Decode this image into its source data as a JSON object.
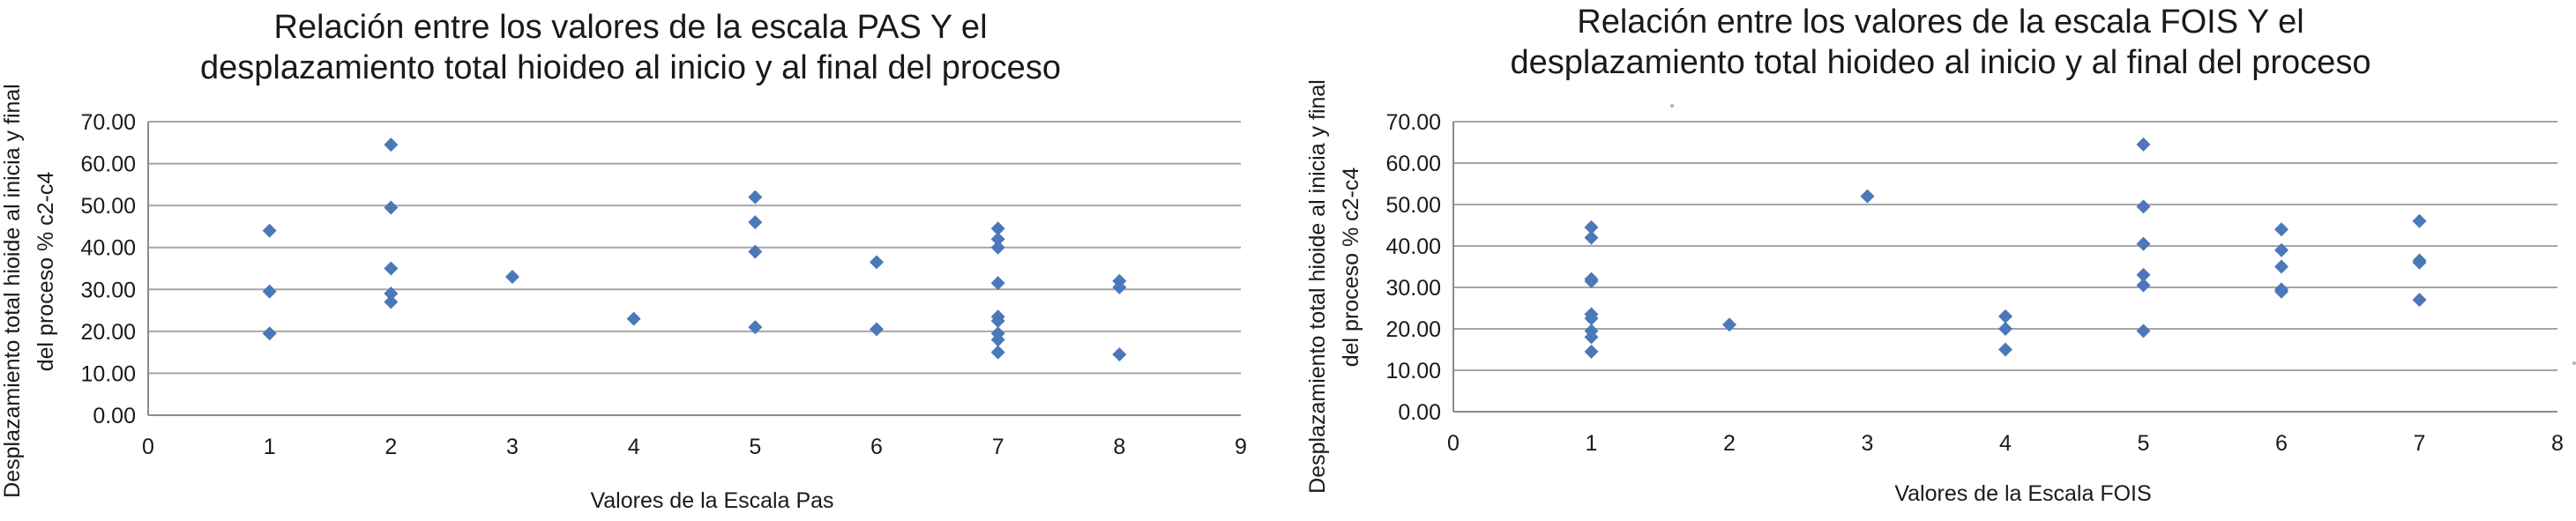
{
  "chart_data": [
    {
      "type": "scatter",
      "title_line1": "Relación entre los valores de la escala PAS Y el",
      "title_line2": "desplazamiento total hioideo al inicio y al final del proceso",
      "xlabel": "Valores de la Escala Pas",
      "ylabel_line1": "Desplazamiento total hioide al inicia y final",
      "ylabel_line2": "del proceso % c2-c4",
      "xlim": [
        0,
        9
      ],
      "ylim": [
        0,
        70
      ],
      "x_ticks": [
        "0",
        "1",
        "2",
        "3",
        "4",
        "5",
        "6",
        "7",
        "8",
        "9"
      ],
      "y_ticks": [
        "0.00",
        "10.00",
        "20.00",
        "30.00",
        "40.00",
        "50.00",
        "60.00",
        "70.00"
      ],
      "grid": true,
      "color": "#4a78b8",
      "points": [
        {
          "x": 1,
          "y": 44.0
        },
        {
          "x": 1,
          "y": 29.5
        },
        {
          "x": 1,
          "y": 19.5
        },
        {
          "x": 2,
          "y": 64.5
        },
        {
          "x": 2,
          "y": 49.5
        },
        {
          "x": 2,
          "y": 35.0
        },
        {
          "x": 2,
          "y": 29.0
        },
        {
          "x": 2,
          "y": 27.0
        },
        {
          "x": 3,
          "y": 33.0
        },
        {
          "x": 4,
          "y": 23.0
        },
        {
          "x": 5,
          "y": 52.0
        },
        {
          "x": 5,
          "y": 46.0
        },
        {
          "x": 5,
          "y": 39.0
        },
        {
          "x": 5,
          "y": 21.0
        },
        {
          "x": 6,
          "y": 36.5
        },
        {
          "x": 6,
          "y": 20.5
        },
        {
          "x": 7,
          "y": 44.5
        },
        {
          "x": 7,
          "y": 42.0
        },
        {
          "x": 7,
          "y": 40.0
        },
        {
          "x": 7,
          "y": 31.5
        },
        {
          "x": 7,
          "y": 23.5
        },
        {
          "x": 7,
          "y": 22.5
        },
        {
          "x": 7,
          "y": 19.5
        },
        {
          "x": 7,
          "y": 18.0
        },
        {
          "x": 7,
          "y": 15.0
        },
        {
          "x": 8,
          "y": 32.0
        },
        {
          "x": 8,
          "y": 30.5
        },
        {
          "x": 8,
          "y": 14.5
        }
      ]
    },
    {
      "type": "scatter",
      "title_line1": "Relación entre los valores de la escala FOIS Y el",
      "title_line2": "desplazamiento total hioideo al inicio y al final del proceso",
      "xlabel": "Valores de la Escala FOIS",
      "ylabel_line1": "Desplazamiento total hioide al inicia y final",
      "ylabel_line2": "del proceso % c2-c4",
      "xlim": [
        0,
        8
      ],
      "ylim": [
        0,
        70
      ],
      "x_ticks": [
        "0",
        "1",
        "2",
        "3",
        "4",
        "5",
        "6",
        "7",
        "8"
      ],
      "y_ticks": [
        "0.00",
        "10.00",
        "20.00",
        "30.00",
        "40.00",
        "50.00",
        "60.00",
        "70.00"
      ],
      "grid": true,
      "color": "#4a78b8",
      "points": [
        {
          "x": 1,
          "y": 44.5
        },
        {
          "x": 1,
          "y": 42.0
        },
        {
          "x": 1,
          "y": 32.0
        },
        {
          "x": 1,
          "y": 31.5
        },
        {
          "x": 1,
          "y": 23.5
        },
        {
          "x": 1,
          "y": 22.5
        },
        {
          "x": 1,
          "y": 19.5
        },
        {
          "x": 1,
          "y": 18.0
        },
        {
          "x": 1,
          "y": 14.5
        },
        {
          "x": 2,
          "y": 21.0
        },
        {
          "x": 3,
          "y": 52.0
        },
        {
          "x": 4,
          "y": 23.0
        },
        {
          "x": 4,
          "y": 20.0
        },
        {
          "x": 4,
          "y": 15.0
        },
        {
          "x": 5,
          "y": 64.5
        },
        {
          "x": 5,
          "y": 49.5
        },
        {
          "x": 5,
          "y": 40.5
        },
        {
          "x": 5,
          "y": 33.0
        },
        {
          "x": 5,
          "y": 30.5
        },
        {
          "x": 5,
          "y": 19.5
        },
        {
          "x": 6,
          "y": 44.0
        },
        {
          "x": 6,
          "y": 39.0
        },
        {
          "x": 6,
          "y": 35.0
        },
        {
          "x": 6,
          "y": 29.5
        },
        {
          "x": 6,
          "y": 29.0
        },
        {
          "x": 7,
          "y": 46.0
        },
        {
          "x": 7,
          "y": 36.5
        },
        {
          "x": 7,
          "y": 36.0
        },
        {
          "x": 7,
          "y": 27.0
        }
      ]
    }
  ]
}
